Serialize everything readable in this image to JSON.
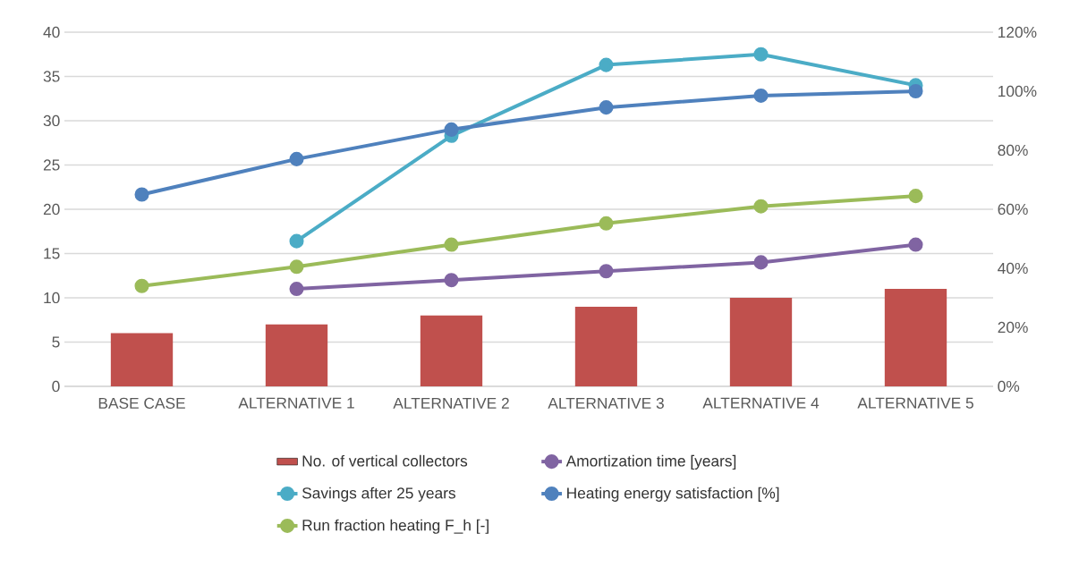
{
  "chart_data": {
    "type": "bar",
    "categories": [
      "BASE CASE",
      "ALTERNATIVE 1",
      "ALTERNATIVE 2",
      "ALTERNATIVE 3",
      "ALTERNATIVE 4",
      "ALTERNATIVE 5"
    ],
    "series": [
      {
        "name": "No. of vertical collectors",
        "color": "#c0504d",
        "values": [
          6,
          7,
          8,
          9,
          10,
          11
        ]
      },
      {
        "name": "Amortization time [years]",
        "type": "line",
        "color": "#8064a2",
        "values": [
          null,
          11,
          12,
          13,
          14,
          16
        ]
      },
      {
        "name": "Savings after 25 years",
        "type": "line",
        "color": "#4bacc6",
        "values": [
          null,
          16.4,
          28.3,
          36.3,
          37.5,
          34
        ]
      },
      {
        "name": "Heating energy satisfaction [%]",
        "type": "line",
        "axis": "y2",
        "color": "#4f81bd",
        "values": [
          65,
          77,
          87,
          94.5,
          98.5,
          100
        ]
      },
      {
        "name": "Run fraction heating F_h [-]",
        "type": "line",
        "axis": "y2",
        "color": "#9bbb59",
        "values": [
          34,
          40.5,
          48,
          55.2,
          61,
          64.5
        ]
      }
    ],
    "ylim": [
      0,
      40
    ],
    "yticks": [
      0,
      5,
      10,
      15,
      20,
      25,
      30,
      35,
      40
    ],
    "y2lim": [
      0,
      120
    ],
    "y2ticks": [
      {
        "value": 0,
        "label": "0%"
      },
      {
        "value": 20,
        "label": "20%"
      },
      {
        "value": 40,
        "label": "40%"
      },
      {
        "value": 60,
        "label": "60%"
      },
      {
        "value": 80,
        "label": "80%"
      },
      {
        "value": 100,
        "label": "100%"
      },
      {
        "value": 120,
        "label": "120%"
      }
    ],
    "grid": "y",
    "legend": "bottom",
    "marker": "circle"
  }
}
